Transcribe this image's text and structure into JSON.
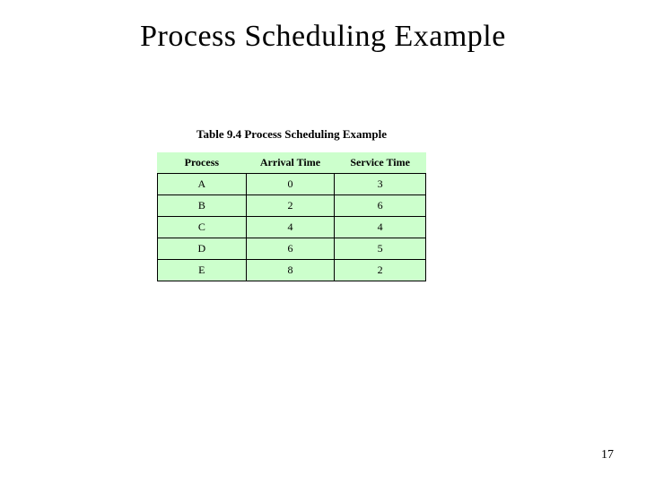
{
  "slide": {
    "title": "Process Scheduling Example",
    "page_number": "17"
  },
  "table": {
    "caption": "Table 9.4 Process Scheduling Example",
    "background_color": "#ccffcc",
    "border_color": "#000000",
    "header_fontsize": 13,
    "body_fontsize": 12,
    "columns": [
      "Process",
      "Arrival Time",
      "Service Time"
    ],
    "rows": [
      [
        "A",
        "0",
        "3"
      ],
      [
        "B",
        "2",
        "6"
      ],
      [
        "C",
        "4",
        "4"
      ],
      [
        "D",
        "6",
        "5"
      ],
      [
        "E",
        "8",
        "2"
      ]
    ]
  }
}
